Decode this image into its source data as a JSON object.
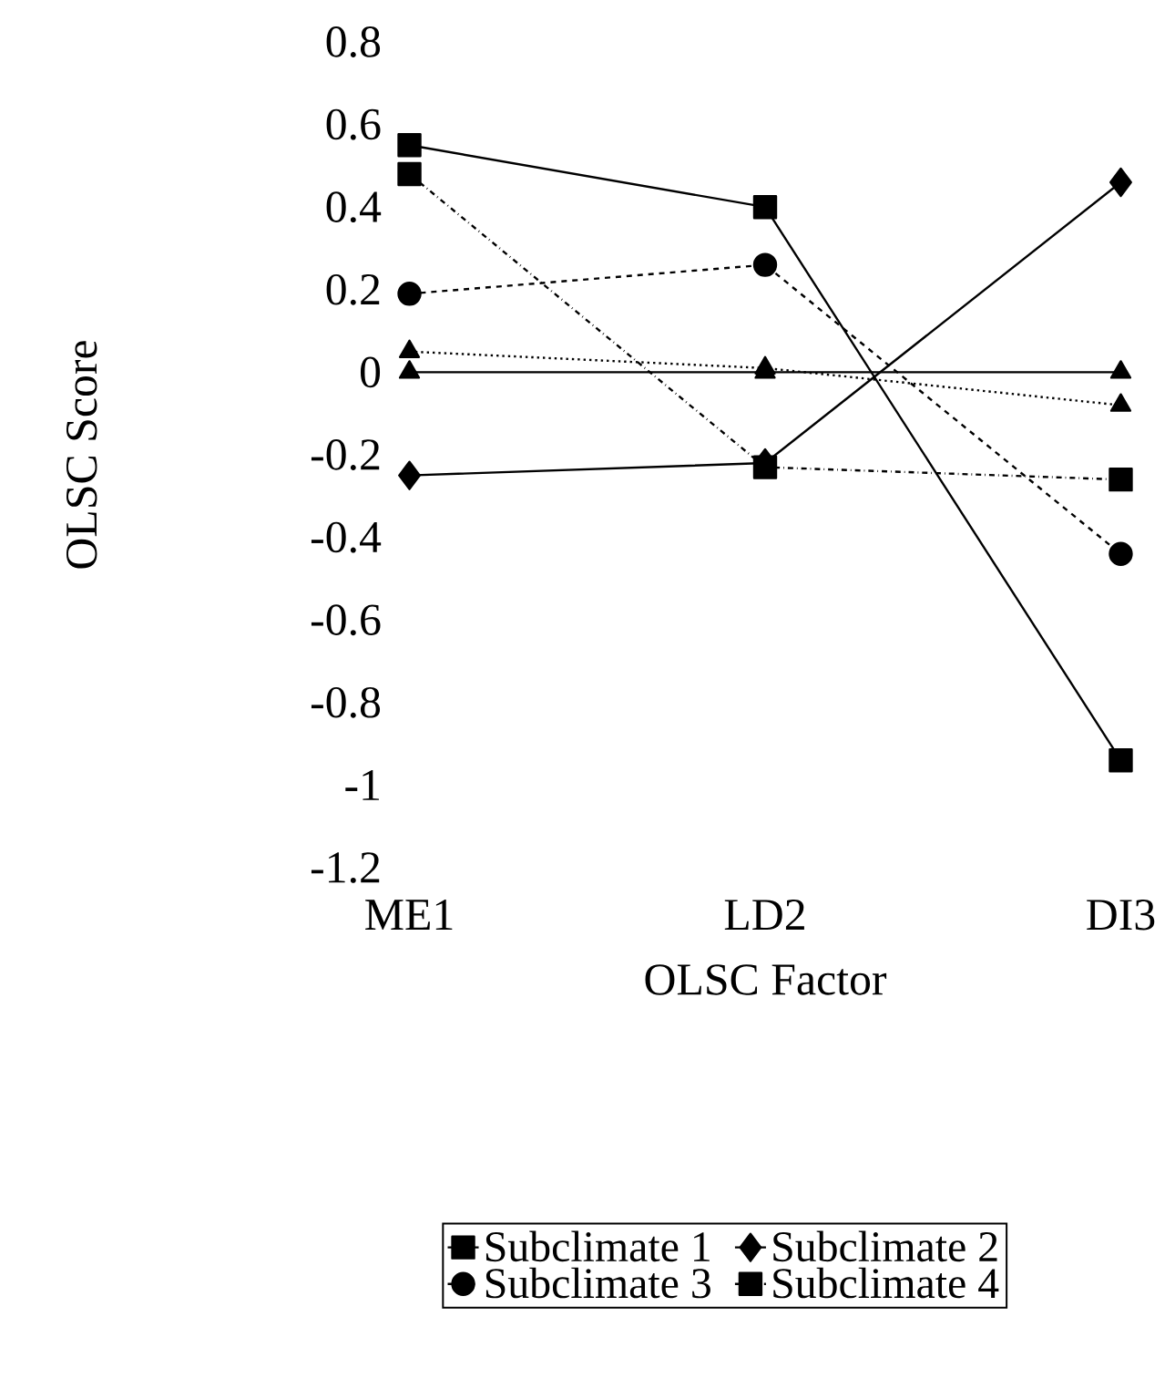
{
  "chart_data": {
    "type": "line",
    "xlabel": "OLSC Factor",
    "ylabel": "OLSC Score",
    "categories": [
      "ME1",
      "LD2",
      "DI3"
    ],
    "series": [
      {
        "name": "Subclimate 1",
        "color": "#000000",
        "marker": "square",
        "line_style": "solid",
        "values": [
          0.55,
          0.4,
          -0.94
        ]
      },
      {
        "name": "Subclimate 2",
        "color": "#000000",
        "marker": "diamond",
        "line_style": "solid",
        "values": [
          -0.25,
          -0.22,
          0.46
        ]
      },
      {
        "name": "Subclimate 3",
        "color": "#000000",
        "marker": "circle",
        "line_style": "dashed",
        "values": [
          0.19,
          0.26,
          -0.44
        ]
      },
      {
        "name": "Subclimate 4",
        "color": "#000000",
        "marker": "square",
        "line_style": "dashdot",
        "values": [
          0.48,
          -0.23,
          -0.26
        ]
      },
      {
        "color": "#000000",
        "marker": "triangle",
        "line_style": "solid",
        "values": [
          0,
          0,
          0
        ]
      },
      {
        "color": "#000000",
        "marker": "triangle",
        "line_style": "dotted",
        "values": [
          0.05,
          0.01,
          -0.08
        ]
      }
    ],
    "ylim": [
      -1.2,
      0.8
    ],
    "yticks": [
      0.8,
      0.6,
      0.4,
      0.2,
      0,
      -0.2,
      -0.4,
      -0.6,
      -0.8,
      -1,
      -1.2
    ],
    "legend": "bottom"
  }
}
